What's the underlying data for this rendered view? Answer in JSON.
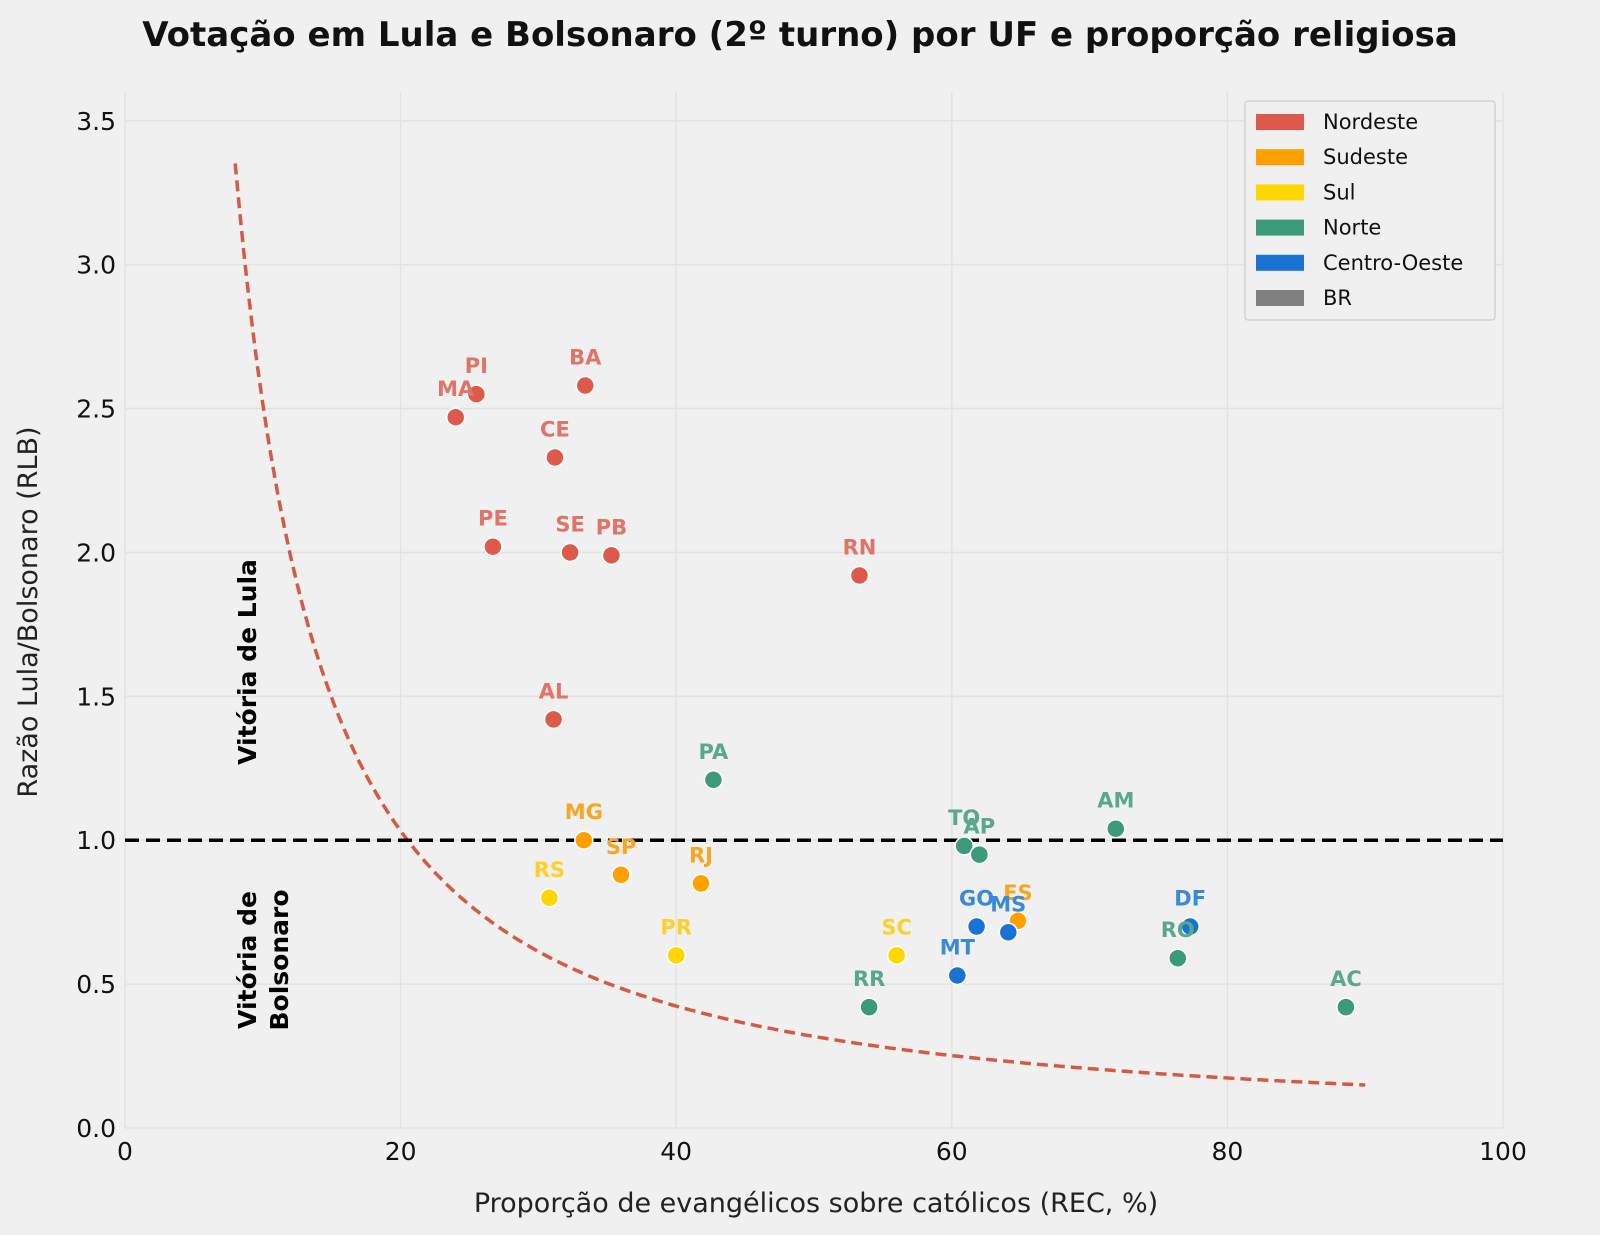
{
  "chart_data": {
    "type": "scatter",
    "title": "Votação em Lula e Bolsonaro (2º turno) por UF e proporção religiosa",
    "xlabel": "Proporção de evangélicos sobre católicos (REC, %)",
    "ylabel": "Razão Lula/Bolsonaro (RLB)",
    "xlim": [
      0,
      100
    ],
    "ylim": [
      0,
      3.6
    ],
    "xticks": [
      0,
      20,
      40,
      60,
      80,
      100
    ],
    "yticks": [
      0.0,
      0.5,
      1.0,
      1.5,
      2.0,
      2.5,
      3.0,
      3.5
    ],
    "grid": true,
    "legend_position": "top-right",
    "legend": [
      {
        "name": "Nordeste",
        "color": "#dd5a4a"
      },
      {
        "name": "Sudeste",
        "color": "#ffa000"
      },
      {
        "name": "Sul",
        "color": "#ffd700"
      },
      {
        "name": "Norte",
        "color": "#3a9a7a"
      },
      {
        "name": "Centro-Oeste",
        "color": "#1a72d4"
      },
      {
        "name": "BR",
        "color": "#808080"
      }
    ],
    "region_label_colors": {
      "Nordeste": "#e07468",
      "Sudeste": "#f5a623",
      "Sul": "#fdd02a",
      "Norte": "#5aa88c",
      "Centro-Oeste": "#3b8ad8"
    },
    "points": [
      {
        "uf": "MA",
        "region": "Nordeste",
        "x": 24.0,
        "y": 2.47
      },
      {
        "uf": "PI",
        "region": "Nordeste",
        "x": 25.5,
        "y": 2.55
      },
      {
        "uf": "BA",
        "region": "Nordeste",
        "x": 33.4,
        "y": 2.58
      },
      {
        "uf": "CE",
        "region": "Nordeste",
        "x": 31.2,
        "y": 2.33
      },
      {
        "uf": "PE",
        "region": "Nordeste",
        "x": 26.7,
        "y": 2.02
      },
      {
        "uf": "SE",
        "region": "Nordeste",
        "x": 32.3,
        "y": 2.0
      },
      {
        "uf": "PB",
        "region": "Nordeste",
        "x": 35.3,
        "y": 1.99
      },
      {
        "uf": "RN",
        "region": "Nordeste",
        "x": 53.3,
        "y": 1.92
      },
      {
        "uf": "AL",
        "region": "Nordeste",
        "x": 31.1,
        "y": 1.42
      },
      {
        "uf": "MG",
        "region": "Sudeste",
        "x": 33.3,
        "y": 1.0
      },
      {
        "uf": "SP",
        "region": "Sudeste",
        "x": 36.0,
        "y": 0.88
      },
      {
        "uf": "RJ",
        "region": "Sudeste",
        "x": 41.8,
        "y": 0.85
      },
      {
        "uf": "ES",
        "region": "Sudeste",
        "x": 64.8,
        "y": 0.72
      },
      {
        "uf": "RS",
        "region": "Sul",
        "x": 30.8,
        "y": 0.8
      },
      {
        "uf": "PR",
        "region": "Sul",
        "x": 40.0,
        "y": 0.6
      },
      {
        "uf": "SC",
        "region": "Sul",
        "x": 56.0,
        "y": 0.6
      },
      {
        "uf": "PA",
        "region": "Norte",
        "x": 42.7,
        "y": 1.21
      },
      {
        "uf": "TO",
        "region": "Norte",
        "x": 60.9,
        "y": 0.98
      },
      {
        "uf": "AP",
        "region": "Norte",
        "x": 62.0,
        "y": 0.95
      },
      {
        "uf": "AM",
        "region": "Norte",
        "x": 71.9,
        "y": 1.04
      },
      {
        "uf": "RO",
        "region": "Norte",
        "x": 76.4,
        "y": 0.59
      },
      {
        "uf": "RR",
        "region": "Norte",
        "x": 54.0,
        "y": 0.42
      },
      {
        "uf": "AC",
        "region": "Norte",
        "x": 88.6,
        "y": 0.42
      },
      {
        "uf": "GO",
        "region": "Centro-Oeste",
        "x": 61.8,
        "y": 0.7
      },
      {
        "uf": "MS",
        "region": "Centro-Oeste",
        "x": 64.1,
        "y": 0.68
      },
      {
        "uf": "MT",
        "region": "Centro-Oeste",
        "x": 60.4,
        "y": 0.53
      },
      {
        "uf": "DF",
        "region": "Centro-Oeste",
        "x": 77.3,
        "y": 0.7
      }
    ],
    "reference_line": {
      "y": 1.0,
      "style": "dashed",
      "color": "#000000"
    },
    "fit_curve": {
      "type": "power",
      "a": 48.5,
      "b": -1.285,
      "x_start": 8.0,
      "x_end": 90.0,
      "style": "dashed",
      "color": "#d45a48"
    },
    "annotations": {
      "lula": "Vitória de Lula",
      "bolsonaro_line1": "Vitória de",
      "bolsonaro_line2": "Bolsonaro"
    }
  }
}
